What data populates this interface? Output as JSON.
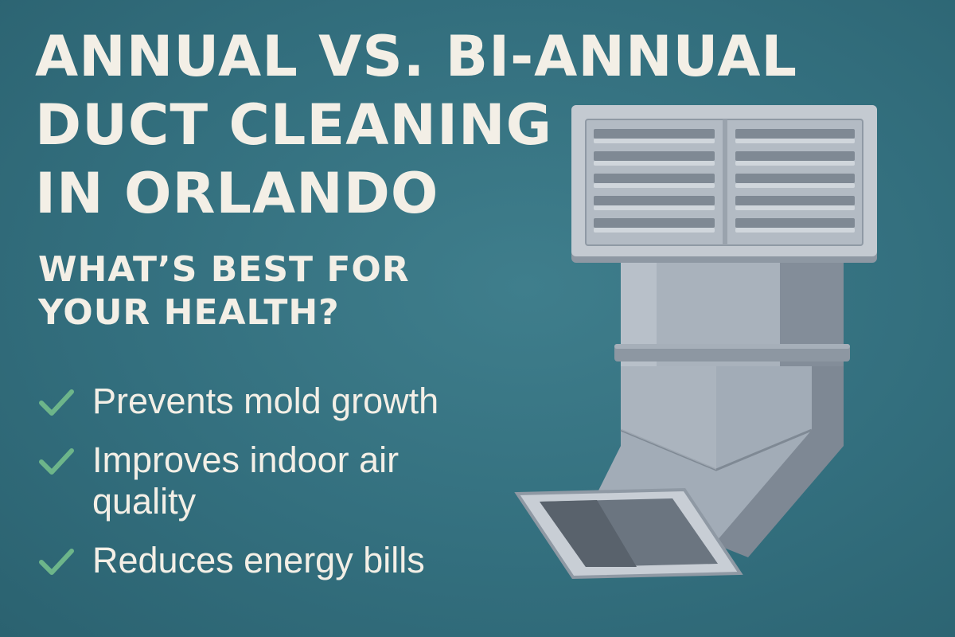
{
  "title": {
    "lines": [
      "ANNUAL VS. BI-ANNUAL",
      "DUCT CLEANING",
      "IN ORLANDO"
    ]
  },
  "subtitle": {
    "lines": [
      "WHAT’S BEST FOR",
      "YOUR HEALTH?"
    ]
  },
  "benefits": [
    {
      "text": "Prevents mold growth",
      "icon": "check-icon"
    },
    {
      "text": "Improves indoor air\nquality",
      "icon": "check-icon"
    },
    {
      "text": "Reduces energy bills",
      "icon": "check-icon"
    }
  ],
  "illustration": {
    "icon": "air-duct-vent-icon"
  },
  "colors": {
    "background": "#336f7e",
    "text": "#f3efe6",
    "check": "#6db58a",
    "duct": "#a7b0ba"
  }
}
